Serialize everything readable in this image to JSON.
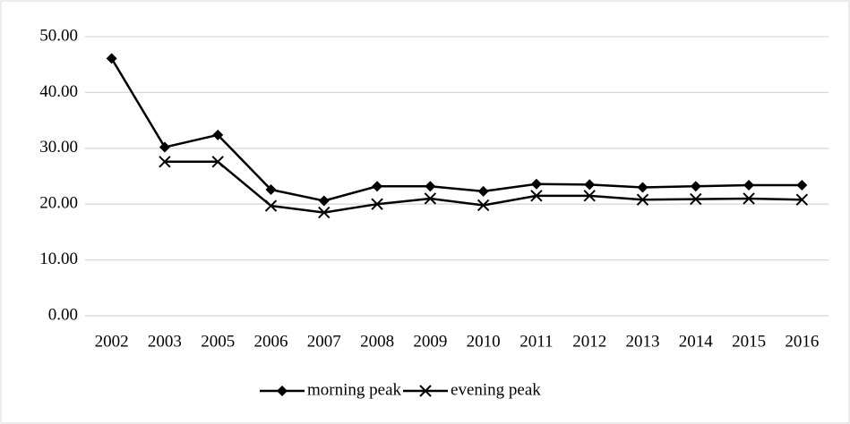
{
  "chart_data": {
    "type": "line",
    "categories": [
      "2002",
      "2003",
      "2005",
      "2006",
      "2007",
      "2008",
      "2009",
      "2010",
      "2011",
      "2012",
      "2013",
      "2014",
      "2015",
      "2016"
    ],
    "series": [
      {
        "name": "morning peak",
        "color": "#000000",
        "marker": "diamond",
        "values": [
          46.1,
          30.2,
          32.4,
          22.6,
          20.6,
          23.2,
          23.2,
          22.3,
          23.6,
          23.5,
          23.0,
          23.2,
          23.4,
          23.4
        ]
      },
      {
        "name": "evening peak",
        "color": "#000000",
        "marker": "x",
        "values": [
          null,
          27.6,
          27.6,
          19.7,
          18.5,
          20.0,
          21.0,
          19.8,
          21.5,
          21.5,
          20.8,
          20.9,
          21.0,
          20.8
        ]
      }
    ],
    "ylim": [
      0,
      50
    ],
    "yticks": [
      {
        "value": 0,
        "label": "0.00"
      },
      {
        "value": 10,
        "label": "10.00"
      },
      {
        "value": 20,
        "label": "20.00"
      },
      {
        "value": 30,
        "label": "30.00"
      },
      {
        "value": 40,
        "label": "40.00"
      },
      {
        "value": 50,
        "label": "50.00"
      }
    ],
    "grid": true,
    "legend": "bottom"
  }
}
